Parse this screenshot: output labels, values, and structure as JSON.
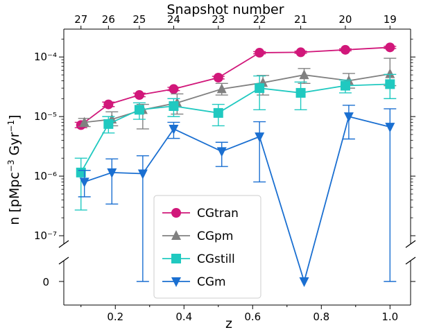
{
  "chart_data": {
    "type": "scatter",
    "xlabel": "z",
    "top_xlabel": "Snapshot number",
    "ylabel": "n [pMpc$^{-3}$ Gyr$^{-1}$]",
    "yscale": "log",
    "xlim": [
      0.05,
      1.06
    ],
    "ylim": [
      1e-07,
      0.00025
    ],
    "zero_band_label": "0",
    "x_ticks": [
      0.2,
      0.4,
      0.6,
      0.8,
      1.0
    ],
    "x_tick_labels": [
      "0.2",
      "0.4",
      "0.6",
      "0.8",
      "1.0"
    ],
    "y_ticks": [
      1e-07,
      1e-06,
      1e-05,
      0.0001
    ],
    "y_tick_labels": [
      "10⁻⁷",
      "10⁻⁶",
      "10⁻⁵",
      "10⁻⁴"
    ],
    "top_ticks": [
      {
        "label": "27",
        "z": 0.1
      },
      {
        "label": "26",
        "z": 0.18
      },
      {
        "label": "25",
        "z": 0.27
      },
      {
        "label": "24",
        "z": 0.37
      },
      {
        "label": "23",
        "z": 0.5
      },
      {
        "label": "22",
        "z": 0.62
      },
      {
        "label": "21",
        "z": 0.74
      },
      {
        "label": "20",
        "z": 0.87
      },
      {
        "label": "19",
        "z": 1.0
      }
    ],
    "legend_position": "lower center",
    "series": [
      {
        "name": "CGtran",
        "color": "#d1177a",
        "marker": "circle",
        "x": [
          0.1,
          0.18,
          0.27,
          0.37,
          0.5,
          0.62,
          0.74,
          0.87,
          1.0
        ],
        "y": [
          7.2e-06,
          1.6e-05,
          2.3e-05,
          2.9e-05,
          4.5e-05,
          0.000118,
          0.00012,
          0.000132,
          0.000145
        ],
        "err_low": [
          6.5e-06,
          1.47e-05,
          2.15e-05,
          2.73e-05,
          4.28e-05,
          0.000113,
          0.000115,
          0.000127,
          0.000139
        ],
        "err_high": [
          8e-06,
          1.75e-05,
          2.47e-05,
          3.1e-05,
          4.73e-05,
          0.000123,
          0.000125,
          0.000137,
          0.000151
        ]
      },
      {
        "name": "CGpm",
        "color": "#808080",
        "marker": "triangle-up",
        "x": [
          0.11,
          0.19,
          0.28,
          0.38,
          0.51,
          0.63,
          0.75,
          0.88,
          1.0
        ],
        "y": [
          8e-06,
          9e-06,
          1.3e-05,
          1.7e-05,
          2.9e-05,
          3.7e-05,
          5e-05,
          4e-05,
          5.2e-05
        ],
        "err_low": [
          6.8e-06,
          7e-06,
          6.2e-06,
          1.1e-05,
          2.3e-05,
          2.3e-05,
          3.6e-05,
          3e-05,
          3.3e-05
        ],
        "err_high": [
          9.3e-06,
          1.2e-05,
          1.6e-05,
          2.4e-05,
          3.6e-05,
          4.9e-05,
          6.4e-05,
          5.3e-05,
          9.5e-05
        ]
      },
      {
        "name": "CGstill",
        "color": "#20c9c0",
        "marker": "square",
        "x": [
          0.1,
          0.18,
          0.27,
          0.37,
          0.5,
          0.62,
          0.74,
          0.87,
          1.0
        ],
        "y": [
          1.15e-06,
          7.5e-06,
          1.3e-05,
          1.5e-05,
          1.15e-05,
          3e-05,
          2.5e-05,
          3.3e-05,
          3.5e-05
        ],
        "err_low": [
          2.7e-07,
          5.3e-06,
          9e-06,
          1e-05,
          7e-06,
          1.3e-05,
          1.3e-05,
          2.5e-05,
          2e-05
        ],
        "err_high": [
          2e-06,
          1e-05,
          1.7e-05,
          2e-05,
          1.6e-05,
          4.8e-05,
          3.8e-05,
          4.1e-05,
          5.1e-05
        ]
      },
      {
        "name": "CGm",
        "color": "#1a6fd1",
        "marker": "triangle-down",
        "x": [
          0.11,
          0.19,
          0.28,
          0.37,
          0.51,
          0.62,
          0.75,
          0.88,
          1.0
        ],
        "y": [
          8e-07,
          1.15e-06,
          1.1e-06,
          6.2e-06,
          2.6e-06,
          4.6e-06,
          0,
          1e-05,
          6.7e-06
        ],
        "err_low": [
          4.5e-07,
          3.4e-07,
          0,
          4.3e-06,
          1.45e-06,
          8e-07,
          0,
          4.2e-06,
          0
        ],
        "err_high": [
          1.25e-06,
          1.95e-06,
          2.2e-06,
          8e-06,
          3.7e-06,
          8.2e-06,
          0,
          1.55e-05,
          1.35e-05
        ]
      }
    ]
  }
}
